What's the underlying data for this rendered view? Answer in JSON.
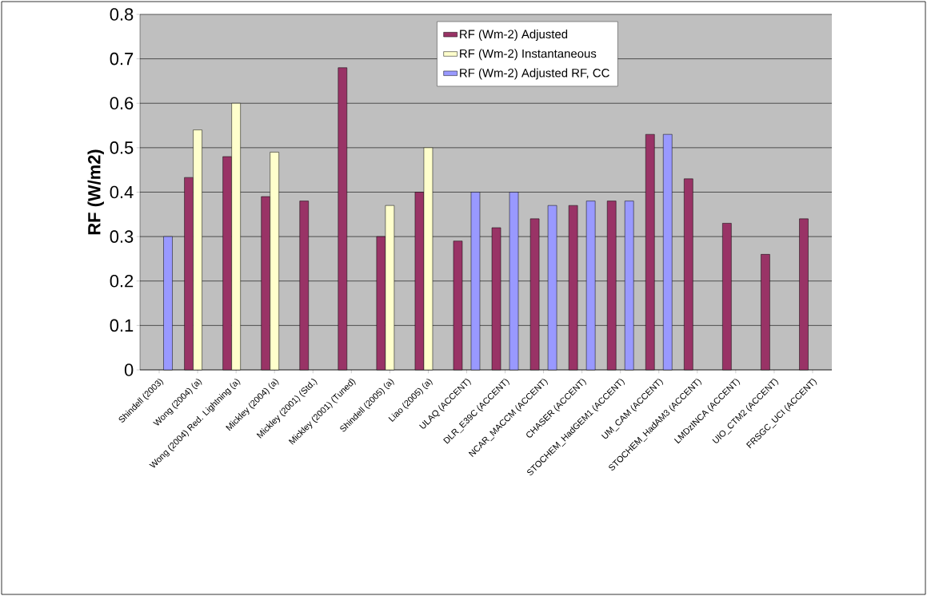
{
  "chart_data": {
    "type": "bar",
    "ylabel": "RF (W/m2)",
    "categories": [
      "Shindell (2003)",
      "Wong (2004) (a)",
      "Wong (2004) Red. Lightning (a)",
      "Mickley (2004) (a)",
      "Mickley (2001) (Std.)",
      "Mickley (2001) (Tuned)",
      "Shindell (2005) (a)",
      "Liao (2005) (a)",
      "ULAQ (ACCENT)",
      "DLR_E39C  (ACCENT)",
      "NCAR_MACCM  (ACCENT)",
      "CHASER  (ACCENT)",
      "STOCHEM_HadGEM1  (ACCENT)",
      "UM_CAM  (ACCENT)",
      "STOCHEM_HadAM3  (ACCENT)",
      "LMDzINCA  (ACCENT)",
      "UIO_CTM2  (ACCENT)",
      "FRSGC_UCI  (ACCENT)"
    ],
    "series": [
      {
        "name": "RF (Wm-2) Adjusted",
        "color": "#993366",
        "values": [
          null,
          0.433,
          0.48,
          0.39,
          0.38,
          0.68,
          0.3,
          0.4,
          0.29,
          0.32,
          0.34,
          0.37,
          0.38,
          0.53,
          0.43,
          0.33,
          0.26,
          0.34
        ]
      },
      {
        "name": "RF (Wm-2) Instantaneous",
        "color": "#ffffcc",
        "values": [
          null,
          0.54,
          0.6,
          0.49,
          null,
          null,
          0.37,
          0.5,
          null,
          null,
          null,
          null,
          null,
          null,
          null,
          null,
          null,
          null
        ]
      },
      {
        "name": "RF (Wm-2) Adjusted RF, CC",
        "color": "#9999ff",
        "values": [
          0.3,
          null,
          null,
          null,
          null,
          null,
          null,
          null,
          0.4,
          0.4,
          0.37,
          0.38,
          0.38,
          0.53,
          null,
          null,
          null,
          null
        ]
      }
    ],
    "ylim": [
      0,
      0.8
    ],
    "yticks": [
      0,
      0.1,
      0.2,
      0.3,
      0.4,
      0.5,
      0.6,
      0.7,
      0.8
    ],
    "grid": "y",
    "legend": "top"
  }
}
